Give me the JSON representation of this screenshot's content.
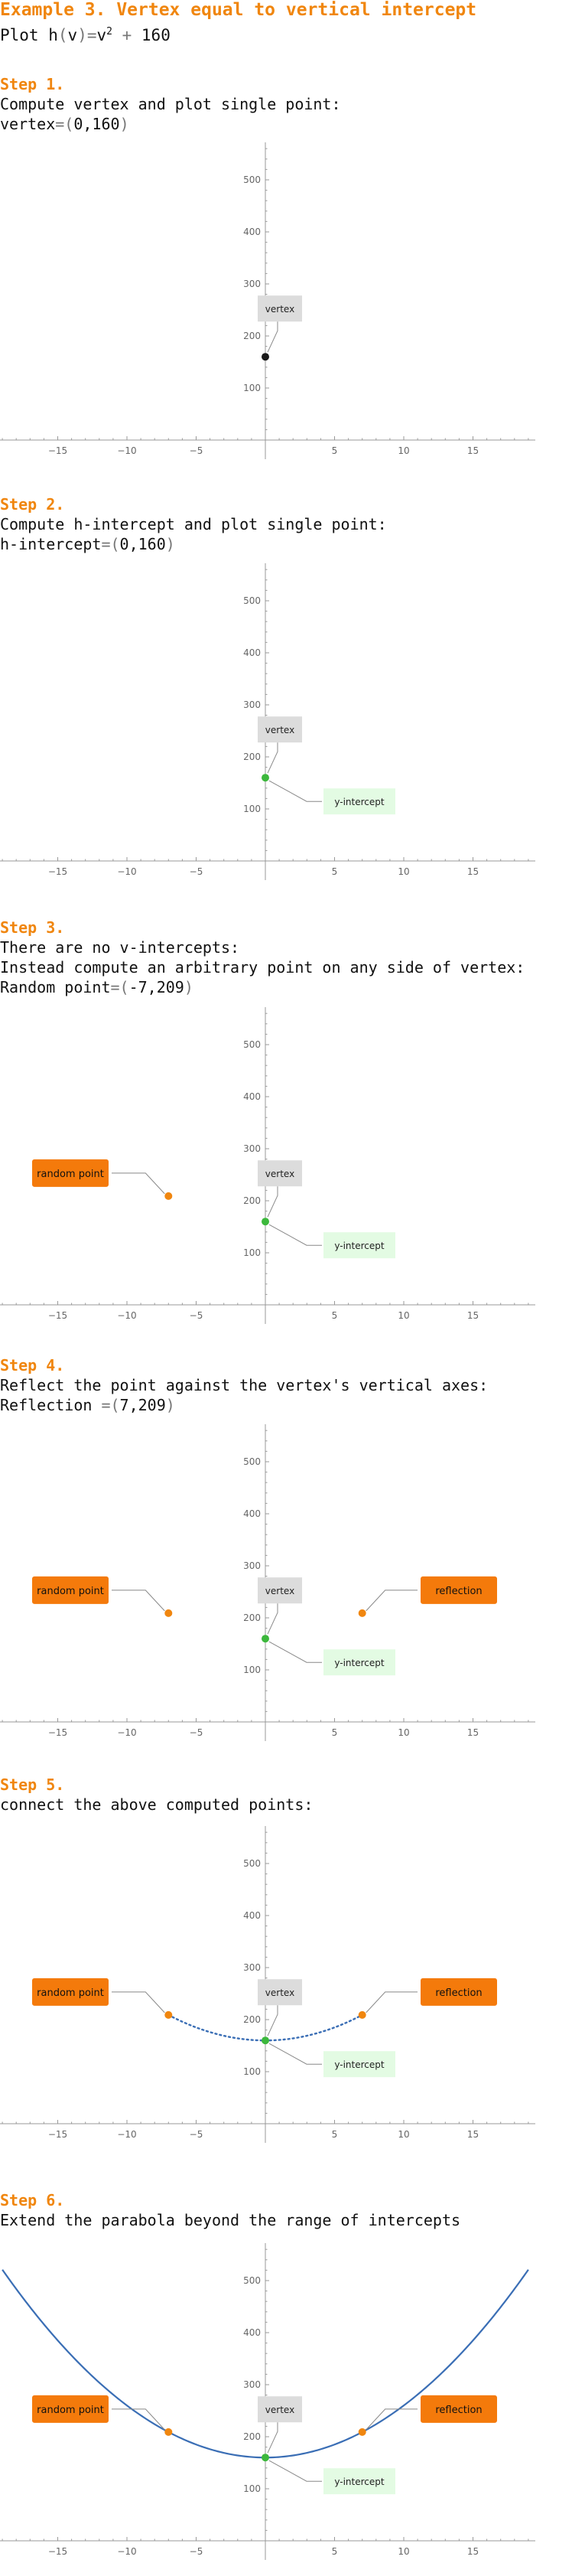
{
  "header": {
    "title": "Example 3. Vertex equal to vertical intercept",
    "plot_prefix": "Plot ",
    "func_name": "h",
    "func_var": "v",
    "func_rhs_base": "v",
    "func_rhs_exp": "2",
    "func_rhs_tail": "160"
  },
  "steps": [
    {
      "head": "Step 1.",
      "lines": [
        {
          "text": "Compute vertex and plot single point:"
        },
        {
          "lhs": "vertex",
          "value": "0,160"
        }
      ]
    },
    {
      "head": "Step 2.",
      "lines": [
        {
          "text": "Compute h-intercept and plot single point:"
        },
        {
          "lhs": "h-intercept",
          "value": "0,160"
        }
      ]
    },
    {
      "head": "Step 3.",
      "lines": [
        {
          "text": "There are no v-intercepts:"
        },
        {
          "text": "Instead compute an arbitrary point on any side of vertex:"
        },
        {
          "lhs": "Random point",
          "value": "-7,209"
        }
      ]
    },
    {
      "head": "Step 4.",
      "lines": [
        {
          "text": "Reflect the point against the vertex's vertical axes:"
        },
        {
          "lhs": "Reflection ",
          "value": "7,209"
        }
      ]
    },
    {
      "head": "Step 5.",
      "lines": [
        {
          "text": "connect the above computed points:"
        }
      ]
    },
    {
      "head": "Step 6.",
      "lines": [
        {
          "text": "Extend the parabola beyond the range of intercepts"
        }
      ]
    }
  ],
  "labels": {
    "vertex": "vertex",
    "y_intercept": "y-intercept",
    "random_point": "random point",
    "reflection": "reflection"
  },
  "colors": {
    "title": "#f0860f",
    "vertex_point": "#1a1a1a",
    "vertex_label_bg": "#dcdcdc",
    "intercept_point": "#3cb83c",
    "intercept_label_bg": "#e3fbe3",
    "random_point": "#f0860f",
    "random_label_bg": "#f47a0b",
    "curve": "#3a6eb5",
    "axis": "#999999"
  },
  "chart_data": [
    {
      "type": "scatter",
      "xlim": [
        -19,
        19
      ],
      "ylim": [
        -5,
        580
      ],
      "x_ticks": [
        -15,
        -10,
        -5,
        5,
        10,
        15
      ],
      "y_ticks": [
        100,
        200,
        300,
        400,
        500
      ],
      "points": [
        {
          "x": 0,
          "y": 160,
          "kind": "vertex"
        }
      ],
      "curve": "none"
    },
    {
      "type": "scatter",
      "xlim": [
        -19,
        19
      ],
      "ylim": [
        -5,
        580
      ],
      "x_ticks": [
        -15,
        -10,
        -5,
        5,
        10,
        15
      ],
      "y_ticks": [
        100,
        200,
        300,
        400,
        500
      ],
      "points": [
        {
          "x": 0,
          "y": 160,
          "kind": "intercept"
        }
      ],
      "curve": "none"
    },
    {
      "type": "scatter",
      "xlim": [
        -19,
        19
      ],
      "ylim": [
        -5,
        580
      ],
      "x_ticks": [
        -15,
        -10,
        -5,
        5,
        10,
        15
      ],
      "y_ticks": [
        100,
        200,
        300,
        400,
        500
      ],
      "points": [
        {
          "x": 0,
          "y": 160,
          "kind": "intercept"
        },
        {
          "x": -7,
          "y": 209,
          "kind": "random"
        }
      ],
      "curve": "none"
    },
    {
      "type": "scatter",
      "xlim": [
        -19,
        19
      ],
      "ylim": [
        -5,
        580
      ],
      "x_ticks": [
        -15,
        -10,
        -5,
        5,
        10,
        15
      ],
      "y_ticks": [
        100,
        200,
        300,
        400,
        500
      ],
      "points": [
        {
          "x": 0,
          "y": 160,
          "kind": "intercept"
        },
        {
          "x": -7,
          "y": 209,
          "kind": "random"
        },
        {
          "x": 7,
          "y": 209,
          "kind": "reflection"
        }
      ],
      "curve": "none"
    },
    {
      "type": "line",
      "xlim": [
        -19,
        19
      ],
      "ylim": [
        -5,
        580
      ],
      "x_ticks": [
        -15,
        -10,
        -5,
        5,
        10,
        15
      ],
      "y_ticks": [
        100,
        200,
        300,
        400,
        500
      ],
      "points": [
        {
          "x": 0,
          "y": 160,
          "kind": "intercept"
        },
        {
          "x": -7,
          "y": 209,
          "kind": "random"
        },
        {
          "x": 7,
          "y": 209,
          "kind": "reflection"
        }
      ],
      "curve": "dotted",
      "curve_range": [
        -7,
        7
      ]
    },
    {
      "type": "line",
      "xlim": [
        -19,
        19
      ],
      "ylim": [
        -5,
        580
      ],
      "x_ticks": [
        -15,
        -10,
        -5,
        5,
        10,
        15
      ],
      "y_ticks": [
        100,
        200,
        300,
        400,
        500
      ],
      "points": [
        {
          "x": 0,
          "y": 160,
          "kind": "intercept"
        },
        {
          "x": -7,
          "y": 209,
          "kind": "random"
        },
        {
          "x": 7,
          "y": 209,
          "kind": "reflection"
        }
      ],
      "curve": "solid",
      "curve_range": [
        -19,
        19
      ]
    }
  ]
}
